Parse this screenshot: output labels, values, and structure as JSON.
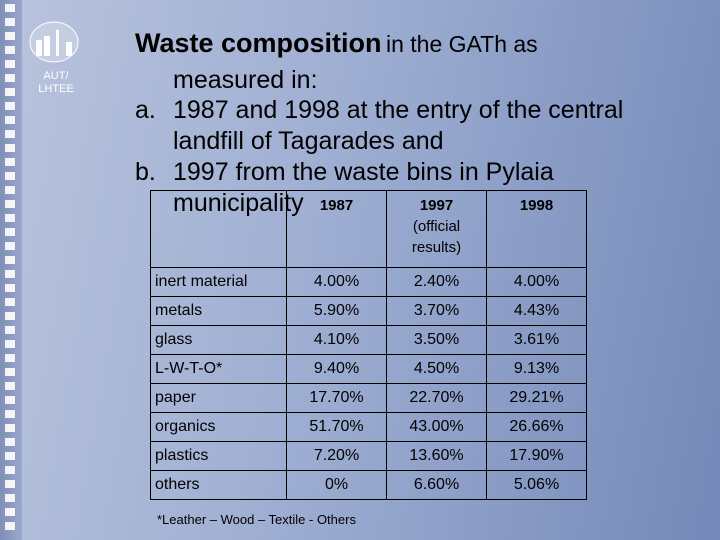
{
  "logo": {
    "lines": [
      "AUT/",
      "LHTEE"
    ]
  },
  "title": {
    "bold": "Waste composition",
    "rest": "in the GATh as"
  },
  "intro": "measured in:",
  "items": [
    {
      "marker": "a.",
      "lines": [
        "1987 and 1998 at the entry of the central",
        "landfill of Tagarades and"
      ]
    },
    {
      "marker": "b.",
      "lines": [
        "1997 from the waste bins in Pylaia",
        "municipality"
      ]
    }
  ],
  "table": {
    "header": [
      {
        "text": "1987"
      },
      {
        "text": "1997",
        "note": "(official results)"
      },
      {
        "text": "1998"
      }
    ],
    "rows": [
      {
        "label": "inert material",
        "cells": [
          "4.00%",
          "2.40%",
          "4.00%"
        ]
      },
      {
        "label": "metals",
        "cells": [
          "5.90%",
          "3.70%",
          "4.43%"
        ]
      },
      {
        "label": "glass",
        "cells": [
          "4.10%",
          "3.50%",
          "3.61%"
        ]
      },
      {
        "label": "L-W-T-O*",
        "cells": [
          "9.40%",
          "4.50%",
          "9.13%"
        ]
      },
      {
        "label": "paper",
        "cells": [
          "17.70%",
          "22.70%",
          "29.21%"
        ]
      },
      {
        "label": "organics",
        "cells": [
          "51.70%",
          "43.00%",
          "26.66%"
        ]
      },
      {
        "label": "plastics",
        "cells": [
          "7.20%",
          "13.60%",
          "17.90%"
        ]
      },
      {
        "label": "others",
        "cells": [
          "0%",
          "6.60%",
          "5.06%"
        ]
      }
    ]
  },
  "footnote": "*Leather – Wood – Textile - Others"
}
